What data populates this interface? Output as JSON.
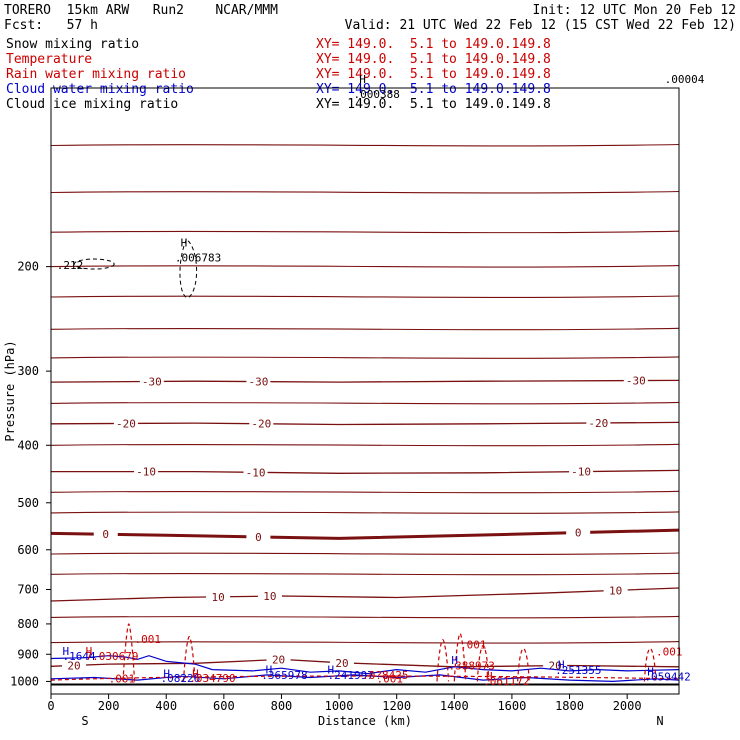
{
  "header": {
    "model_line": "TORERO  15km ARW   Run2    NCAR/MMM",
    "init_line": "Init: 12 UTC Mon 20 Feb 12",
    "fcst_line": "Fcst:   57 h",
    "valid_line": "Valid: 21 UTC Wed 22 Feb 12 (15 CST Wed 22 Feb 12)"
  },
  "legend": [
    {
      "name": "Snow mixing ratio",
      "color": "#000000",
      "xy": "XY= 149.0.  5.1 to 149.0.149.8"
    },
    {
      "name": "Temperature",
      "color": "#cc0000",
      "xy": "XY= 149.0.  5.1 to 149.0.149.8"
    },
    {
      "name": "Rain water mixing ratio",
      "color": "#cc0000",
      "xy": "XY= 149.0.  5.1 to 149.0.149.8"
    },
    {
      "name": "Cloud water mixing ratio",
      "color": "#0000cc",
      "xy": "XY= 149.0.  5.1 to 149.0.149.8"
    },
    {
      "name": "Cloud ice mixing ratio",
      "color": "#000000",
      "xy": "XY= 149.0.  5.1 to 149.0.149.8"
    }
  ],
  "colors": {
    "temperature": "#7a1010",
    "rain": "#cc0000",
    "cloud_water": "#0000cc",
    "ice": "#000000"
  },
  "chart_data": {
    "type": "line",
    "xlabel": "Distance (km)",
    "ylabel": "Pressure (hPa)",
    "xlim": [
      0,
      2180
    ],
    "ylim": [
      100,
      1050
    ],
    "y_scale": "log",
    "x_ticks": [
      0,
      200,
      400,
      600,
      800,
      1000,
      1200,
      1400,
      1600,
      1800,
      2000
    ],
    "y_ticks": [
      200,
      300,
      400,
      500,
      600,
      700,
      800,
      900,
      1000
    ],
    "x_end_labels": {
      "left": "S",
      "right": "N"
    },
    "temperature_contours": [
      {
        "value": -30,
        "label": "-30",
        "label_x": [
          350,
          720,
          2030
        ],
        "points": [
          [
            0,
            313
          ],
          [
            500,
            312
          ],
          [
            1000,
            313
          ],
          [
            1500,
            312
          ],
          [
            2180,
            311
          ]
        ]
      },
      {
        "value": -20,
        "label": "-20",
        "label_x": [
          260,
          730,
          1900
        ],
        "points": [
          [
            0,
            368
          ],
          [
            500,
            367
          ],
          [
            1000,
            369
          ],
          [
            1500,
            368
          ],
          [
            2180,
            366
          ]
        ]
      },
      {
        "value": -10,
        "label": "-10",
        "label_x": [
          330,
          710,
          1840
        ],
        "points": [
          [
            0,
            443
          ],
          [
            500,
            443
          ],
          [
            1000,
            446
          ],
          [
            1500,
            445
          ],
          [
            2180,
            441
          ]
        ]
      },
      {
        "value": 0,
        "label": "0",
        "label_x": [
          190,
          720,
          1830
        ],
        "points": [
          [
            0,
            563
          ],
          [
            400,
            567
          ],
          [
            1000,
            574
          ],
          [
            1600,
            565
          ],
          [
            2180,
            556
          ]
        ]
      },
      {
        "value": 10,
        "label": "10",
        "label_x": [
          580,
          760,
          1960
        ],
        "points": [
          [
            0,
            732
          ],
          [
            400,
            722
          ],
          [
            800,
            718
          ],
          [
            1200,
            722
          ],
          [
            1700,
            710
          ],
          [
            2180,
            696
          ]
        ]
      },
      {
        "value": 20,
        "label": "20",
        "label_x": [
          80,
          790,
          1010,
          1750
        ],
        "points": [
          [
            0,
            943
          ],
          [
            200,
            935
          ],
          [
            500,
            932
          ],
          [
            800,
            918
          ],
          [
            1000,
            930
          ],
          [
            1400,
            945
          ],
          [
            1800,
            940
          ],
          [
            2180,
            945
          ]
        ]
      }
    ],
    "annotations": [
      {
        "text": ".001",
        "x": 290,
        "p": 862,
        "color": "#cc0000"
      },
      {
        "text": ".001",
        "x": 1420,
        "p": 880,
        "color": "#cc0000"
      },
      {
        "text": ".001",
        "x": 2100,
        "p": 905,
        "color": "#cc0000"
      },
      {
        "text": ".001",
        "x": 200,
        "p": 1005,
        "color": "#cc0000"
      },
      {
        "text": ".001",
        "x": 1130,
        "p": 1005,
        "color": "#cc0000"
      },
      {
        "text": "H",
        "x": 40,
        "p": 902,
        "color": "#0000cc"
      },
      {
        "text": "H",
        "x": 120,
        "p": 902,
        "color": "#cc0000"
      },
      {
        "text": ".1644",
        "x": 40,
        "p": 920,
        "color": "#0000cc"
      },
      {
        "text": "7.030679",
        "x": 120,
        "p": 920,
        "color": "#cc0000"
      },
      {
        "text": "H",
        "x": 390,
        "p": 985,
        "color": "#0000cc"
      },
      {
        "text": "H",
        "x": 490,
        "p": 985,
        "color": "#cc0000"
      },
      {
        "text": ".08226",
        "x": 380,
        "p": 1003,
        "color": "#0000cc"
      },
      {
        "text": ".034790",
        "x": 480,
        "p": 1003,
        "color": "#cc0000"
      },
      {
        "text": "H",
        "x": 745,
        "p": 970,
        "color": "#0000cc"
      },
      {
        "text": "H",
        "x": 960,
        "p": 970,
        "color": "#0000cc"
      },
      {
        "text": ".365978",
        "x": 730,
        "p": 990,
        "color": "#0000cc"
      },
      {
        "text": ".241997",
        "x": 960,
        "p": 990,
        "color": "#0000cc"
      },
      {
        "text": ".0?8425",
        "x": 1080,
        "p": 990,
        "color": "#cc0000"
      },
      {
        "text": "H",
        "x": 1390,
        "p": 935,
        "color": "#0000cc"
      },
      {
        "text": ".388973",
        "x": 1380,
        "p": 955,
        "color": "#cc0000"
      },
      {
        "text": "H",
        "x": 1510,
        "p": 995,
        "color": "#cc0000"
      },
      {
        "text": ".061172",
        "x": 1500,
        "p": 1013,
        "color": "#cc0000"
      },
      {
        "text": "H",
        "x": 1760,
        "p": 952,
        "color": "#0000cc"
      },
      {
        "text": ".251355",
        "x": 1750,
        "p": 972,
        "color": "#0000cc"
      },
      {
        "text": "H",
        "x": 2070,
        "p": 978,
        "color": "#0000cc"
      },
      {
        "text": ".059442",
        "x": 2060,
        "p": 997,
        "color": "#0000cc"
      },
      {
        "text": "H",
        "x": 450,
        "p": 185,
        "color": "#000000"
      },
      {
        "text": ".006783",
        "x": 430,
        "p": 196,
        "color": "#000000"
      },
      {
        "text": "H",
        "x": 1070,
        "p": 98,
        "color": "#000000"
      },
      {
        "text": ".000388",
        "x": 1050,
        "p": 104,
        "color": "#000000"
      },
      {
        "text": ".00004",
        "x": 2130,
        "p": 98,
        "color": "#000000"
      },
      {
        "text": ".212",
        "x": 20,
        "p": 202,
        "color": "#000000"
      }
    ]
  }
}
